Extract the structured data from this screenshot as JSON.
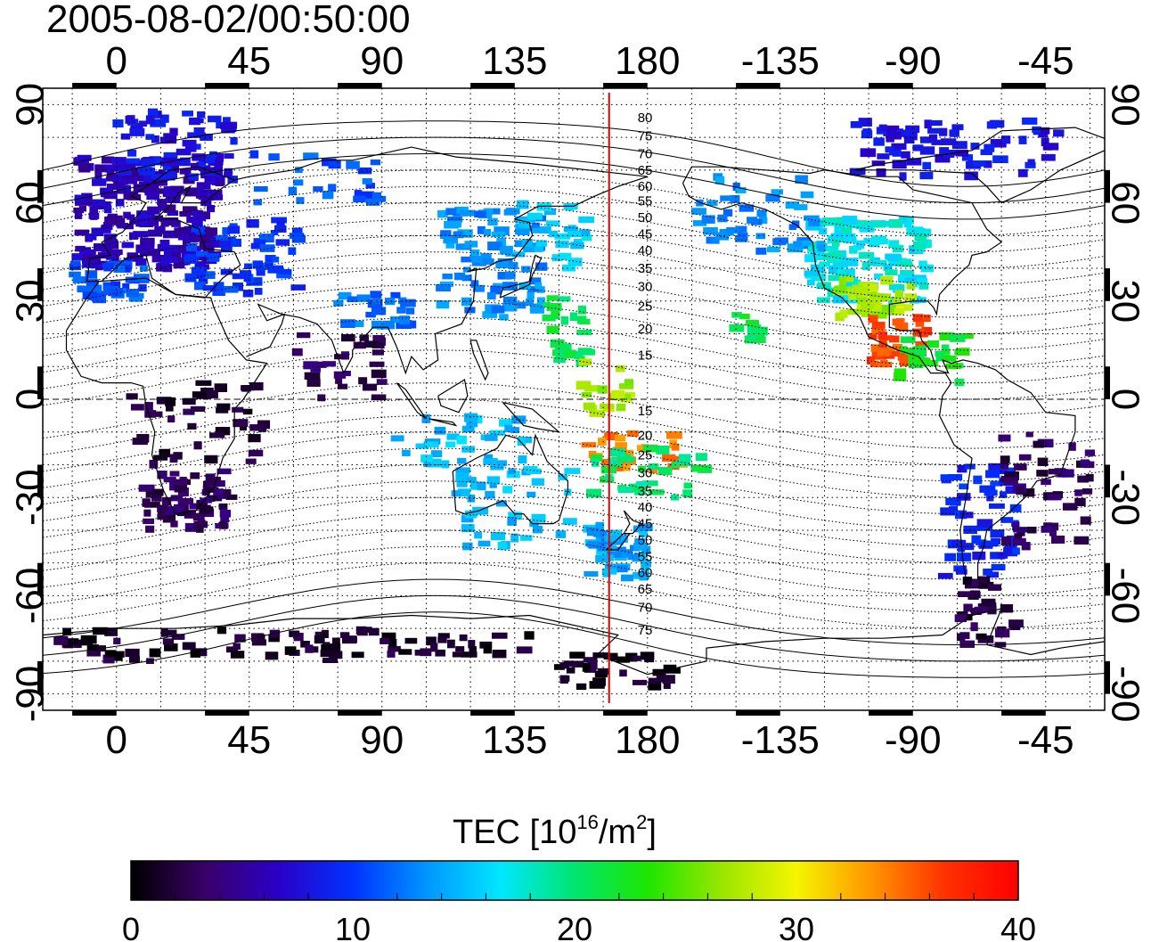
{
  "title": "2005-08-02/00:50:00",
  "map": {
    "lon_range": [
      -25,
      335
    ],
    "lat_range": [
      -95,
      95
    ],
    "lon_ticks": [
      {
        "lon": 0,
        "label": "0"
      },
      {
        "lon": 45,
        "label": "45"
      },
      {
        "lon": 90,
        "label": "90"
      },
      {
        "lon": 135,
        "label": "135"
      },
      {
        "lon": 180,
        "label": "180"
      },
      {
        "lon": 225,
        "label": "-135"
      },
      {
        "lon": 270,
        "label": "-90"
      },
      {
        "lon": 315,
        "label": "-45"
      }
    ],
    "lat_ticks": [
      {
        "lat": 90,
        "label": "90"
      },
      {
        "lat": 60,
        "label": "60"
      },
      {
        "lat": 30,
        "label": "30"
      },
      {
        "lat": 0,
        "label": "0"
      },
      {
        "lat": -30,
        "label": "-30"
      },
      {
        "lat": -60,
        "label": "-60"
      },
      {
        "lat": -90,
        "label": "-90"
      }
    ],
    "grid_step_lon": 15,
    "grid_step_lat": 10,
    "grid": true,
    "marker_line_lon": 167,
    "marker_line_color": "#e00000",
    "contour_labels": [
      {
        "label": "80",
        "lat": 86
      },
      {
        "label": "75",
        "lat": 80.5
      },
      {
        "label": "70",
        "lat": 75
      },
      {
        "label": "65",
        "lat": 70
      },
      {
        "label": "60",
        "lat": 65
      },
      {
        "label": "55",
        "lat": 60.5
      },
      {
        "label": "50",
        "lat": 55.5
      },
      {
        "label": "45",
        "lat": 50.5
      },
      {
        "label": "40",
        "lat": 45.5
      },
      {
        "label": "35",
        "lat": 40
      },
      {
        "label": "30",
        "lat": 34.5
      },
      {
        "label": "25",
        "lat": 28.5
      },
      {
        "label": "20",
        "lat": 21.5
      },
      {
        "label": "15",
        "lat": 13.5
      },
      {
        "label": "15",
        "lat": -3.5
      },
      {
        "label": "20",
        "lat": -11
      },
      {
        "label": "25",
        "lat": -17
      },
      {
        "label": "30",
        "lat": -22.5
      },
      {
        "label": "35",
        "lat": -28
      },
      {
        "label": "40",
        "lat": -33
      },
      {
        "label": "45",
        "lat": -38
      },
      {
        "label": "50",
        "lat": -43
      },
      {
        "label": "55",
        "lat": -48
      },
      {
        "label": "60",
        "lat": -53
      },
      {
        "label": "65",
        "lat": -58
      },
      {
        "label": "70",
        "lat": -63.5
      },
      {
        "label": "75",
        "lat": -70.5
      }
    ]
  },
  "tec_regions": [
    {
      "lon": [
        -13,
        35
      ],
      "lat": [
        40,
        74
      ],
      "tec": 6,
      "n": 260
    },
    {
      "lon": [
        0,
        40
      ],
      "lat": [
        67,
        88
      ],
      "tec": 8,
      "n": 70
    },
    {
      "lon": [
        -15,
        10
      ],
      "lat": [
        30,
        42
      ],
      "tec": 11,
      "n": 40
    },
    {
      "lon": [
        25,
        62
      ],
      "lat": [
        32,
        55
      ],
      "tec": 10,
      "n": 60
    },
    {
      "lon": [
        45,
        90
      ],
      "lat": [
        60,
        75
      ],
      "tec": 11,
      "n": 25
    },
    {
      "lon": [
        75,
        100
      ],
      "lat": [
        22,
        32
      ],
      "tec": 12,
      "n": 25
    },
    {
      "lon": [
        110,
        145
      ],
      "lat": [
        25,
        58
      ],
      "tec": 13,
      "n": 90
    },
    {
      "lon": [
        135,
        160
      ],
      "lat": [
        40,
        60
      ],
      "tec": 16,
      "n": 30
    },
    {
      "lon": [
        145,
        160
      ],
      "lat": [
        10,
        32
      ],
      "tec": 21,
      "n": 25
    },
    {
      "lon": [
        155,
        175
      ],
      "lat": [
        -5,
        12
      ],
      "tec": 27,
      "n": 20
    },
    {
      "lon": [
        160,
        192
      ],
      "lat": [
        -22,
        -10
      ],
      "tec": 34,
      "n": 25
    },
    {
      "lon": [
        160,
        200
      ],
      "lat": [
        -30,
        -15
      ],
      "tec": 20,
      "n": 35
    },
    {
      "lon": [
        160,
        180
      ],
      "lat": [
        -55,
        -38
      ],
      "tec": 14,
      "n": 50
    },
    {
      "lon": [
        115,
        155
      ],
      "lat": [
        -45,
        -20
      ],
      "tec": 15,
      "n": 45
    },
    {
      "lon": [
        95,
        140
      ],
      "lat": [
        -20,
        -5
      ],
      "tec": 15,
      "n": 35
    },
    {
      "lon": [
        10,
        40
      ],
      "lat": [
        -40,
        -22
      ],
      "tec": 3,
      "n": 70
    },
    {
      "lon": [
        5,
        50
      ],
      "lat": [
        -20,
        5
      ],
      "tec": 2,
      "n": 45
    },
    {
      "lon": [
        60,
        90
      ],
      "lat": [
        0,
        20
      ],
      "tec": 3,
      "n": 30
    },
    {
      "lon": [
        -20,
        100
      ],
      "lat": [
        -80,
        -70
      ],
      "tec": 1.5,
      "n": 75
    },
    {
      "lon": [
        150,
        190
      ],
      "lat": [
        -88,
        -78
      ],
      "tec": 1,
      "n": 35
    },
    {
      "lon": [
        100,
        140
      ],
      "lat": [
        -78,
        -72
      ],
      "tec": 1.5,
      "n": 20
    },
    {
      "lon": [
        235,
        275
      ],
      "lat": [
        30,
        55
      ],
      "tec": 17,
      "n": 130
    },
    {
      "lon": [
        245,
        270
      ],
      "lat": [
        25,
        37
      ],
      "tec": 27,
      "n": 40
    },
    {
      "lon": [
        255,
        275
      ],
      "lat": [
        10,
        25
      ],
      "tec": 36,
      "n": 40
    },
    {
      "lon": [
        265,
        290
      ],
      "lat": [
        5,
        20
      ],
      "tec": 22,
      "n": 30
    },
    {
      "lon": [
        195,
        240
      ],
      "lat": [
        45,
        68
      ],
      "tec": 13,
      "n": 50
    },
    {
      "lon": [
        210,
        220
      ],
      "lat": [
        18,
        26
      ],
      "tec": 21,
      "n": 12
    },
    {
      "lon": [
        250,
        320
      ],
      "lat": [
        68,
        85
      ],
      "tec": 8,
      "n": 80
    },
    {
      "lon": [
        280,
        305
      ],
      "lat": [
        -55,
        -20
      ],
      "tec": 9,
      "n": 60
    },
    {
      "lon": [
        300,
        330
      ],
      "lat": [
        -45,
        -10
      ],
      "tec": 3,
      "n": 50
    },
    {
      "lon": [
        285,
        305
      ],
      "lat": [
        -75,
        -55
      ],
      "tec": 2,
      "n": 35
    }
  ],
  "colorbar": {
    "title_main": "TEC  [10",
    "title_exp1": "16",
    "title_unit": "/m",
    "title_exp2": "2",
    "title_end": "]",
    "min": 0,
    "max": 40,
    "tick_labels": [
      {
        "value": 0,
        "label": "0"
      },
      {
        "value": 10,
        "label": "10"
      },
      {
        "value": 20,
        "label": "20"
      },
      {
        "value": 30,
        "label": "30"
      },
      {
        "value": 40,
        "label": "40"
      }
    ],
    "colors": [
      "#000000",
      "#3a0068",
      "#2a00c8",
      "#0032ff",
      "#0096ff",
      "#00e6ff",
      "#00e66e",
      "#1ee600",
      "#9be600",
      "#f5f500",
      "#ff9600",
      "#ff3200",
      "#ff0000"
    ]
  }
}
